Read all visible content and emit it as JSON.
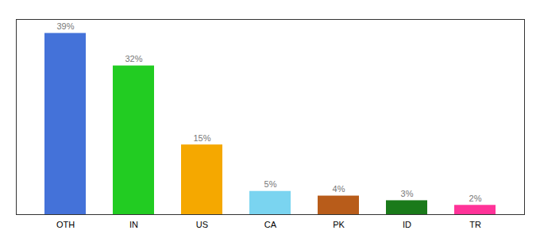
{
  "chart_data": {
    "type": "bar",
    "categories": [
      "OTH",
      "IN",
      "US",
      "CA",
      "PK",
      "ID",
      "TR"
    ],
    "values": [
      39,
      32,
      15,
      5,
      4,
      3,
      2
    ],
    "value_labels": [
      "39%",
      "32%",
      "15%",
      "5%",
      "4%",
      "3%",
      "2%"
    ],
    "colors": [
      "#4472d9",
      "#22cc22",
      "#f5a800",
      "#7ad4f0",
      "#b85c1a",
      "#1a7a1a",
      "#ff3399"
    ],
    "ylim": [
      0,
      42
    ],
    "data_labels": true,
    "tick_labels": "x"
  }
}
